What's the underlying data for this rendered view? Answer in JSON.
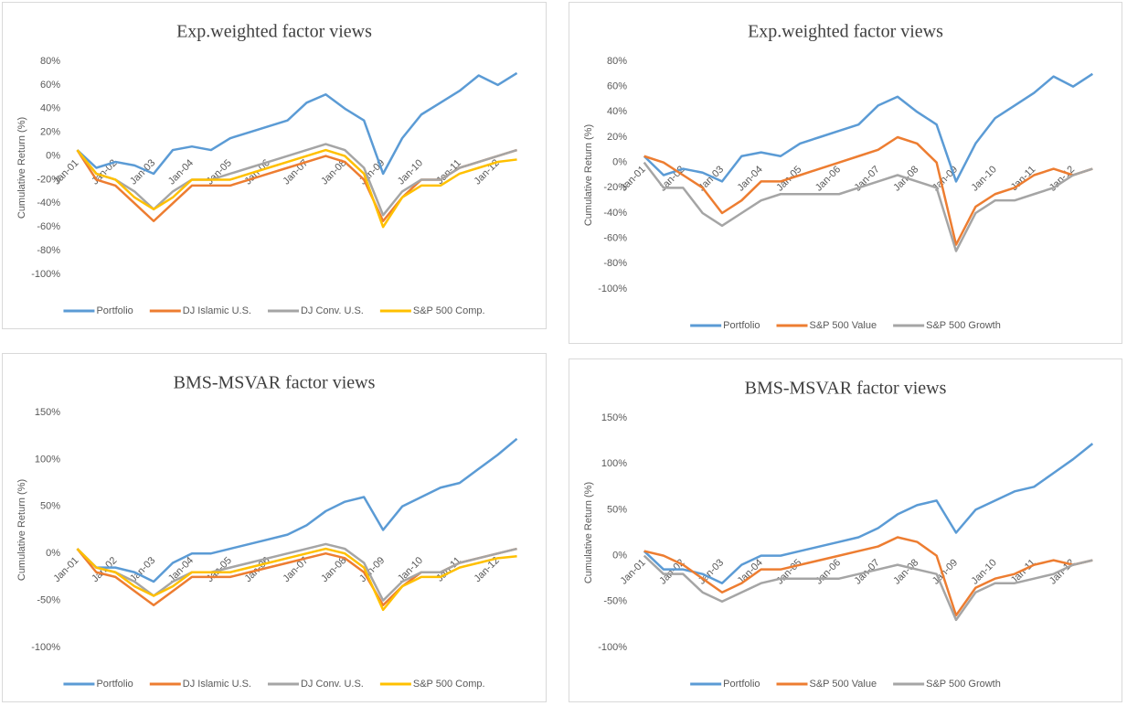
{
  "chart_data": [
    {
      "type": "line",
      "title": "Exp.weighted  factor views",
      "y_label": "Cumulative Return (%)",
      "categories": [
        "Jan-01",
        null,
        "Jan-02",
        null,
        "Jan-03",
        null,
        "Jan-04",
        null,
        "Jan-05",
        null,
        "Jan-06",
        null,
        "Jan-07",
        null,
        "Jan-08",
        null,
        "Jan-09",
        null,
        "Jan-10",
        null,
        "Jan-11",
        null,
        "Jan-12",
        null
      ],
      "ylim": [
        -100,
        80
      ],
      "yticks": [
        {
          "value": -100,
          "label": "-100%"
        },
        {
          "value": -80,
          "label": "-80%"
        },
        {
          "value": -60,
          "label": "-60%"
        },
        {
          "value": -40,
          "label": "-40%"
        },
        {
          "value": -20,
          "label": "-20%"
        },
        {
          "value": 0,
          "label": "0%"
        },
        {
          "value": 20,
          "label": "20%"
        },
        {
          "value": 40,
          "label": "40%"
        },
        {
          "value": 60,
          "label": "60%"
        },
        {
          "value": 80,
          "label": "80%"
        }
      ],
      "grid": false,
      "series": [
        {
          "name": "Portfolio",
          "color": "#5b9bd5",
          "values": [
            5,
            -10,
            -5,
            -8,
            -15,
            5,
            8,
            5,
            15,
            20,
            25,
            30,
            45,
            52,
            40,
            30,
            -15,
            15,
            35,
            45,
            55,
            68,
            60,
            70
          ]
        },
        {
          "name": "DJ Islamic U.S.",
          "color": "#ed7d31",
          "values": [
            5,
            -20,
            -25,
            -40,
            -55,
            -40,
            -25,
            -25,
            -25,
            -20,
            -15,
            -10,
            -5,
            0,
            -5,
            -20,
            -55,
            -35,
            -20,
            -20,
            -10,
            -5,
            0,
            5
          ]
        },
        {
          "name": "DJ Conv. U.S.",
          "color": "#a5a5a5",
          "values": [
            5,
            -15,
            -20,
            -30,
            -45,
            -30,
            -20,
            -20,
            -15,
            -10,
            -5,
            0,
            5,
            10,
            5,
            -10,
            -50,
            -30,
            -20,
            -20,
            -10,
            -5,
            0,
            5
          ]
        },
        {
          "name": "S&P 500 Comp.",
          "color": "#ffc000",
          "values": [
            5,
            -15,
            -20,
            -35,
            -45,
            -35,
            -20,
            -20,
            -20,
            -15,
            -10,
            -5,
            0,
            5,
            0,
            -15,
            -60,
            -35,
            -25,
            -25,
            -15,
            -10,
            -5,
            -3
          ]
        }
      ]
    },
    {
      "type": "line",
      "title": "Exp.weighted  factor views",
      "y_label": "Cumulative Return (%)",
      "categories": [
        "Jan-01",
        null,
        "Jan-02",
        null,
        "Jan-03",
        null,
        "Jan-04",
        null,
        "Jan-05",
        null,
        "Jan-06",
        null,
        "Jan-07",
        null,
        "Jan-08",
        null,
        "Jan-09",
        null,
        "Jan-10",
        null,
        "Jan-11",
        null,
        "Jan-12",
        null
      ],
      "ylim": [
        -100,
        80
      ],
      "yticks": [
        {
          "value": -100,
          "label": "-100%"
        },
        {
          "value": -80,
          "label": "-80%"
        },
        {
          "value": -60,
          "label": "-60%"
        },
        {
          "value": -40,
          "label": "-40%"
        },
        {
          "value": -20,
          "label": "-20%"
        },
        {
          "value": 0,
          "label": "0%"
        },
        {
          "value": 20,
          "label": "20%"
        },
        {
          "value": 40,
          "label": "40%"
        },
        {
          "value": 60,
          "label": "60%"
        },
        {
          "value": 80,
          "label": "80%"
        }
      ],
      "grid": false,
      "series": [
        {
          "name": "Portfolio",
          "color": "#5b9bd5",
          "values": [
            5,
            -10,
            -5,
            -8,
            -15,
            5,
            8,
            5,
            15,
            20,
            25,
            30,
            45,
            52,
            40,
            30,
            -15,
            15,
            35,
            45,
            55,
            68,
            60,
            70
          ]
        },
        {
          "name": "S&P 500 Value",
          "color": "#ed7d31",
          "values": [
            5,
            0,
            -10,
            -20,
            -40,
            -30,
            -15,
            -15,
            -10,
            -5,
            0,
            5,
            10,
            20,
            15,
            0,
            -65,
            -35,
            -25,
            -20,
            -10,
            -5,
            -10,
            -5
          ]
        },
        {
          "name": "S&P 500 Growth",
          "color": "#a5a5a5",
          "values": [
            0,
            -20,
            -20,
            -40,
            -50,
            -40,
            -30,
            -25,
            -25,
            -25,
            -25,
            -20,
            -15,
            -10,
            -15,
            -20,
            -70,
            -40,
            -30,
            -30,
            -25,
            -20,
            -10,
            -5
          ]
        }
      ]
    },
    {
      "type": "line",
      "title": "BMS-MSVAR  factor views",
      "y_label": "Cumulative Return (%)",
      "categories": [
        "Jan-01",
        null,
        "Jan-02",
        null,
        "Jan-03",
        null,
        "Jan-04",
        null,
        "Jan-05",
        null,
        "Jan-06",
        null,
        "Jan-07",
        null,
        "Jan-08",
        null,
        "Jan-09",
        null,
        "Jan-10",
        null,
        "Jan-11",
        null,
        "Jan-12",
        null
      ],
      "ylim": [
        -100,
        150
      ],
      "yticks": [
        {
          "value": -100,
          "label": "-100%"
        },
        {
          "value": -50,
          "label": "-50%"
        },
        {
          "value": 0,
          "label": "0%"
        },
        {
          "value": 50,
          "label": "50%"
        },
        {
          "value": 100,
          "label": "100%"
        },
        {
          "value": 150,
          "label": "150%"
        }
      ],
      "grid": false,
      "series": [
        {
          "name": "Portfolio",
          "color": "#5b9bd5",
          "values": [
            5,
            -15,
            -15,
            -20,
            -30,
            -10,
            0,
            0,
            5,
            10,
            15,
            20,
            30,
            45,
            55,
            60,
            25,
            50,
            60,
            70,
            75,
            90,
            105,
            122
          ]
        },
        {
          "name": "DJ Islamic U.S.",
          "color": "#ed7d31",
          "values": [
            5,
            -20,
            -25,
            -40,
            -55,
            -40,
            -25,
            -25,
            -25,
            -20,
            -15,
            -10,
            -5,
            0,
            -5,
            -20,
            -55,
            -35,
            -20,
            -20,
            -10,
            -5,
            0,
            5
          ]
        },
        {
          "name": "DJ Conv. U.S.",
          "color": "#a5a5a5",
          "values": [
            5,
            -15,
            -20,
            -30,
            -45,
            -30,
            -20,
            -20,
            -15,
            -10,
            -5,
            0,
            5,
            10,
            5,
            -10,
            -50,
            -30,
            -20,
            -20,
            -10,
            -5,
            0,
            5
          ]
        },
        {
          "name": "S&P 500 Comp.",
          "color": "#ffc000",
          "values": [
            5,
            -15,
            -20,
            -35,
            -45,
            -35,
            -20,
            -20,
            -20,
            -15,
            -10,
            -5,
            0,
            5,
            0,
            -15,
            -60,
            -35,
            -25,
            -25,
            -15,
            -10,
            -5,
            -3
          ]
        }
      ]
    },
    {
      "type": "line",
      "title": "BMS-MSVAR  factor views",
      "y_label": "Cumulative Return (%)",
      "categories": [
        "Jan-01",
        null,
        "Jan-02",
        null,
        "Jan-03",
        null,
        "Jan-04",
        null,
        "Jan-05",
        null,
        "Jan-06",
        null,
        "Jan-07",
        null,
        "Jan-08",
        null,
        "Jan-09",
        null,
        "Jan-10",
        null,
        "Jan-11",
        null,
        "Jan-12",
        null
      ],
      "ylim": [
        -100,
        150
      ],
      "yticks": [
        {
          "value": -100,
          "label": "-100%"
        },
        {
          "value": -50,
          "label": "-50%"
        },
        {
          "value": 0,
          "label": "0%"
        },
        {
          "value": 50,
          "label": "50%"
        },
        {
          "value": 100,
          "label": "100%"
        },
        {
          "value": 150,
          "label": "150%"
        }
      ],
      "grid": false,
      "series": [
        {
          "name": "Portfolio",
          "color": "#5b9bd5",
          "values": [
            5,
            -15,
            -15,
            -20,
            -30,
            -10,
            0,
            0,
            5,
            10,
            15,
            20,
            30,
            45,
            55,
            60,
            25,
            50,
            60,
            70,
            75,
            90,
            105,
            122
          ]
        },
        {
          "name": "S&P 500 Value",
          "color": "#ed7d31",
          "values": [
            5,
            0,
            -10,
            -25,
            -40,
            -30,
            -15,
            -15,
            -10,
            -5,
            0,
            5,
            10,
            20,
            15,
            0,
            -65,
            -35,
            -25,
            -20,
            -10,
            -5,
            -10,
            -5
          ]
        },
        {
          "name": "S&P 500 Growth",
          "color": "#a5a5a5",
          "values": [
            0,
            -20,
            -20,
            -40,
            -50,
            -40,
            -30,
            -25,
            -25,
            -25,
            -25,
            -20,
            -15,
            -10,
            -15,
            -20,
            -70,
            -40,
            -30,
            -30,
            -25,
            -20,
            -10,
            -5
          ]
        }
      ]
    }
  ]
}
